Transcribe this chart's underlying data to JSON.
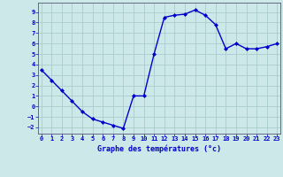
{
  "x": [
    0,
    1,
    2,
    3,
    4,
    5,
    6,
    7,
    8,
    9,
    10,
    11,
    12,
    13,
    14,
    15,
    16,
    17,
    18,
    19,
    20,
    21,
    22,
    23
  ],
  "y": [
    3.5,
    2.5,
    1.5,
    0.5,
    -0.5,
    -1.2,
    -1.5,
    -1.8,
    -2.1,
    1.0,
    1.0,
    5.0,
    8.5,
    8.7,
    8.8,
    9.2,
    8.7,
    7.8,
    5.5,
    6.0,
    5.5,
    5.5,
    5.7,
    6.0
  ],
  "line_color": "#0000cc",
  "marker": "D",
  "marker_size": 2.0,
  "bg_color": "#cce8e8",
  "grid_color": "#aacccc",
  "xlabel": "Graphe des températures (°c)",
  "xlabel_color": "#0000cc",
  "tick_color": "#0000cc",
  "axis_color": "#555577",
  "ylim": [
    -2.6,
    9.9
  ],
  "xlim": [
    -0.3,
    23.3
  ],
  "yticks": [
    -2,
    -1,
    0,
    1,
    2,
    3,
    4,
    5,
    6,
    7,
    8,
    9
  ],
  "xticks": [
    0,
    1,
    2,
    3,
    4,
    5,
    6,
    7,
    8,
    9,
    10,
    11,
    12,
    13,
    14,
    15,
    16,
    17,
    18,
    19,
    20,
    21,
    22,
    23
  ],
  "tick_fontsize": 5.0,
  "xlabel_fontsize": 6.0,
  "linewidth": 1.0
}
